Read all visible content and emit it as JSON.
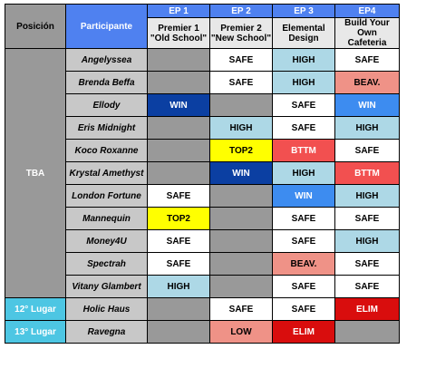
{
  "headers": {
    "position": "Posición",
    "participant": "Participante",
    "episodes": [
      {
        "num": "EP 1",
        "title_line1": "Premier 1",
        "title_line2": "\"Old School\""
      },
      {
        "num": "EP 2",
        "title_line1": "Premier 2",
        "title_line2": "\"New School\""
      },
      {
        "num": "EP 3",
        "title_line1": "Elemental",
        "title_line2": "Design"
      },
      {
        "num": "EP4",
        "title_line1": "Build Your Own",
        "title_line2": "Cafeteria"
      }
    ]
  },
  "groups": [
    {
      "position": "TBA",
      "rows": [
        {
          "name": "Angelyssea",
          "results": [
            {
              "text": "",
              "style": "NA"
            },
            {
              "text": "SAFE",
              "style": "SAFE"
            },
            {
              "text": "HIGH",
              "style": "HIGH"
            },
            {
              "text": "SAFE",
              "style": "SAFE"
            }
          ]
        },
        {
          "name": "Brenda Beffa",
          "results": [
            {
              "text": "",
              "style": "NA"
            },
            {
              "text": "SAFE",
              "style": "SAFE"
            },
            {
              "text": "HIGH",
              "style": "HIGH"
            },
            {
              "text": "BEAV.",
              "style": "BEAV"
            }
          ]
        },
        {
          "name": "Ellody",
          "results": [
            {
              "text": "WIN",
              "style": "WIN"
            },
            {
              "text": "",
              "style": "NA"
            },
            {
              "text": "SAFE",
              "style": "SAFE"
            },
            {
              "text": "WIN",
              "style": "WIN2"
            }
          ]
        },
        {
          "name": "Eris Midnight",
          "results": [
            {
              "text": "",
              "style": "NA"
            },
            {
              "text": "HIGH",
              "style": "HIGH"
            },
            {
              "text": "SAFE",
              "style": "SAFE"
            },
            {
              "text": "HIGH",
              "style": "HIGH"
            }
          ]
        },
        {
          "name": "Koco Roxanne",
          "results": [
            {
              "text": "",
              "style": "NA"
            },
            {
              "text": "TOP2",
              "style": "TOP2"
            },
            {
              "text": "BTTM",
              "style": "BTTM"
            },
            {
              "text": "SAFE",
              "style": "SAFE"
            }
          ]
        },
        {
          "name": "Krystal Amethyst",
          "results": [
            {
              "text": "",
              "style": "NA"
            },
            {
              "text": "WIN",
              "style": "WIN"
            },
            {
              "text": "HIGH",
              "style": "HIGH"
            },
            {
              "text": "BTTM",
              "style": "BTTM"
            }
          ]
        },
        {
          "name": "London Fortune",
          "results": [
            {
              "text": "SAFE",
              "style": "SAFE"
            },
            {
              "text": "",
              "style": "NA"
            },
            {
              "text": "WIN",
              "style": "WIN2"
            },
            {
              "text": "HIGH",
              "style": "HIGH"
            }
          ]
        },
        {
          "name": "Mannequin",
          "results": [
            {
              "text": "TOP2",
              "style": "TOP2"
            },
            {
              "text": "",
              "style": "NA"
            },
            {
              "text": "SAFE",
              "style": "SAFE"
            },
            {
              "text": "SAFE",
              "style": "SAFE"
            }
          ]
        },
        {
          "name": "Money4U",
          "results": [
            {
              "text": "SAFE",
              "style": "SAFE"
            },
            {
              "text": "",
              "style": "NA"
            },
            {
              "text": "SAFE",
              "style": "SAFE"
            },
            {
              "text": "HIGH",
              "style": "HIGH"
            }
          ]
        },
        {
          "name": "Spectrah",
          "results": [
            {
              "text": "SAFE",
              "style": "SAFE"
            },
            {
              "text": "",
              "style": "NA"
            },
            {
              "text": "BEAV.",
              "style": "BEAV"
            },
            {
              "text": "SAFE",
              "style": "SAFE"
            }
          ]
        },
        {
          "name": "Vitany Glambert",
          "results": [
            {
              "text": "HIGH",
              "style": "HIGH"
            },
            {
              "text": "",
              "style": "NA"
            },
            {
              "text": "SAFE",
              "style": "SAFE"
            },
            {
              "text": "SAFE",
              "style": "SAFE"
            }
          ]
        }
      ]
    },
    {
      "position": "12° Lugar",
      "rows": [
        {
          "name": "Holic Haus",
          "results": [
            {
              "text": "",
              "style": "NA"
            },
            {
              "text": "SAFE",
              "style": "SAFE"
            },
            {
              "text": "SAFE",
              "style": "SAFE"
            },
            {
              "text": "ELIM",
              "style": "ELIM"
            }
          ]
        }
      ]
    },
    {
      "position": "13° Lugar",
      "rows": [
        {
          "name": "Ravegna",
          "results": [
            {
              "text": "",
              "style": "NA"
            },
            {
              "text": "LOW",
              "style": "LOW"
            },
            {
              "text": "ELIM",
              "style": "ELIM"
            },
            {
              "text": "",
              "style": "NA"
            }
          ]
        }
      ]
    }
  ]
}
